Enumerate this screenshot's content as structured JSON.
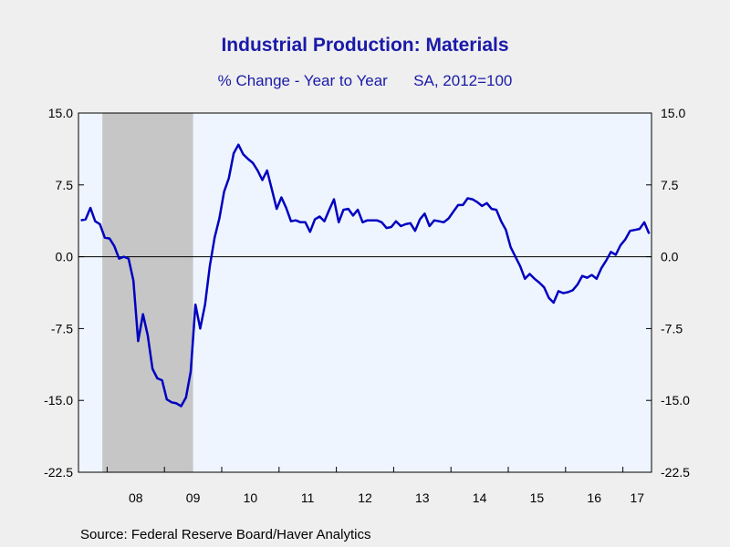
{
  "title": "Industrial Production: Materials",
  "subtitle_left": "% Change - Year to Year",
  "subtitle_right": "SA, 2012=100",
  "source": "Source:  Federal Reserve Board/Haver Analytics",
  "colors": {
    "line": "#0000c0",
    "recession": "#c6c6c6",
    "plot_bg": "#eef5ff",
    "page_bg": "#efefef",
    "text": "#1a1aa8"
  },
  "chart_data": {
    "type": "line",
    "title": "Industrial Production: Materials",
    "subtitle": "% Change - Year to Year    SA, 2012=100",
    "xlabel": "",
    "ylabel": "",
    "ylim": [
      -22.5,
      15.0
    ],
    "y_ticks": [
      "15.0",
      "7.5",
      "0.0",
      "-7.5",
      "-15.0",
      "-22.5"
    ],
    "y_tick_values": [
      15.0,
      7.5,
      0.0,
      -7.5,
      -15.0,
      -22.5
    ],
    "x_tick_labels": [
      "08",
      "09",
      "10",
      "11",
      "12",
      "13",
      "14",
      "15",
      "16",
      "17"
    ],
    "x_range": [
      "2007-07",
      "2017-06"
    ],
    "recession": {
      "start": "2007-12",
      "end": "2009-06"
    },
    "zero_line": true,
    "grid": false,
    "series": [
      {
        "x": [
          "2007-07",
          "2007-08",
          "2007-09",
          "2007-10",
          "2007-11",
          "2007-12",
          "2008-01",
          "2008-02",
          "2008-03",
          "2008-04",
          "2008-05",
          "2008-06",
          "2008-07",
          "2008-08",
          "2008-09",
          "2008-10",
          "2008-11",
          "2008-12",
          "2009-01",
          "2009-02",
          "2009-03",
          "2009-04",
          "2009-05",
          "2009-06",
          "2009-07",
          "2009-08",
          "2009-09",
          "2009-10",
          "2009-11",
          "2009-12",
          "2010-01",
          "2010-02",
          "2010-03",
          "2010-04",
          "2010-05",
          "2010-06",
          "2010-07",
          "2010-08",
          "2010-09",
          "2010-10",
          "2010-11",
          "2010-12",
          "2011-01",
          "2011-02",
          "2011-03",
          "2011-04",
          "2011-05",
          "2011-06",
          "2011-07",
          "2011-08",
          "2011-09",
          "2011-10",
          "2011-11",
          "2011-12",
          "2012-01",
          "2012-02",
          "2012-03",
          "2012-04",
          "2012-05",
          "2012-06",
          "2012-07",
          "2012-08",
          "2012-09",
          "2012-10",
          "2012-11",
          "2012-12",
          "2013-01",
          "2013-02",
          "2013-03",
          "2013-04",
          "2013-05",
          "2013-06",
          "2013-07",
          "2013-08",
          "2013-09",
          "2013-10",
          "2013-11",
          "2013-12",
          "2014-01",
          "2014-02",
          "2014-03",
          "2014-04",
          "2014-05",
          "2014-06",
          "2014-07",
          "2014-08",
          "2014-09",
          "2014-10",
          "2014-11",
          "2014-12",
          "2015-01",
          "2015-02",
          "2015-03",
          "2015-04",
          "2015-05",
          "2015-06",
          "2015-07",
          "2015-08",
          "2015-09",
          "2015-10",
          "2015-11",
          "2015-12",
          "2016-01",
          "2016-02",
          "2016-03",
          "2016-04",
          "2016-05",
          "2016-06",
          "2016-07",
          "2016-08",
          "2016-09",
          "2016-10",
          "2016-11",
          "2016-12",
          "2017-01",
          "2017-02",
          "2017-03",
          "2017-04",
          "2017-05",
          "2017-06"
        ],
        "values": [
          3.8,
          3.9,
          5.1,
          3.7,
          3.4,
          2.0,
          1.9,
          1.1,
          -0.2,
          0.0,
          -0.2,
          -2.5,
          -8.8,
          -6.0,
          -8.2,
          -11.7,
          -12.7,
          -12.9,
          -14.9,
          -15.2,
          -15.3,
          -15.6,
          -14.7,
          -12.0,
          -5.0,
          -7.5,
          -5.0,
          -1.0,
          2.0,
          4.0,
          6.8,
          8.2,
          10.8,
          11.7,
          10.7,
          10.2,
          9.8,
          9.0,
          8.0,
          9.0,
          7.0,
          5.0,
          6.2,
          5.1,
          3.7,
          3.8,
          3.6,
          3.6,
          2.6,
          3.9,
          4.2,
          3.7,
          4.9,
          6.0,
          3.6,
          4.9,
          5.0,
          4.3,
          4.9,
          3.6,
          3.8,
          3.8,
          3.8,
          3.6,
          3.0,
          3.1,
          3.7,
          3.2,
          3.4,
          3.5,
          2.7,
          3.9,
          4.5,
          3.2,
          3.8,
          3.7,
          3.6,
          4.0,
          4.7,
          5.4,
          5.4,
          6.1,
          6.0,
          5.7,
          5.3,
          5.6,
          5.0,
          4.9,
          3.7,
          2.8,
          1.0,
          0.0,
          -1.0,
          -2.3,
          -1.8,
          -2.3,
          -2.7,
          -3.2,
          -4.3,
          -4.8,
          -3.6,
          -3.8,
          -3.7,
          -3.5,
          -2.9,
          -2.0,
          -2.2,
          -1.9,
          -2.3,
          -1.2,
          -0.4,
          0.5,
          0.2,
          1.2,
          1.8,
          2.7,
          2.8,
          2.9,
          3.6,
          2.4
        ]
      }
    ]
  }
}
